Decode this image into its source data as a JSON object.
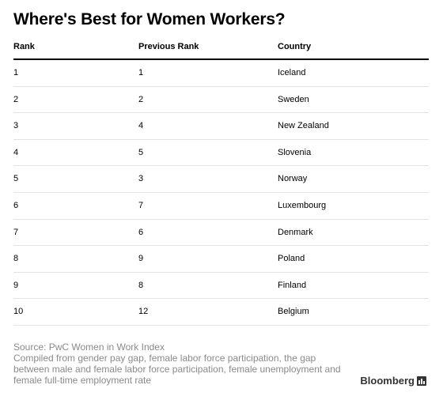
{
  "chart_data": {
    "type": "table",
    "title": "Where's Best for Women Workers?",
    "columns": [
      "Rank",
      "Previous Rank",
      "Country"
    ],
    "rows": [
      [
        "1",
        "1",
        "Iceland"
      ],
      [
        "2",
        "2",
        "Sweden"
      ],
      [
        "3",
        "4",
        "New Zealand"
      ],
      [
        "4",
        "5",
        "Slovenia"
      ],
      [
        "5",
        "3",
        "Norway"
      ],
      [
        "6",
        "7",
        "Luxembourg"
      ],
      [
        "7",
        "6",
        "Denmark"
      ],
      [
        "8",
        "9",
        "Poland"
      ],
      [
        "9",
        "8",
        "Finland"
      ],
      [
        "10",
        "12",
        "Belgium"
      ]
    ],
    "source": "Source: PwC Women in Work Index",
    "note": "Compiled from gender pay gap, female labor force participation, the gap between male and female labor force participation, female unemployment and female full-time employment rate"
  },
  "brand": {
    "name": "Bloomberg",
    "icon": "bloomberg-logo-icon"
  }
}
